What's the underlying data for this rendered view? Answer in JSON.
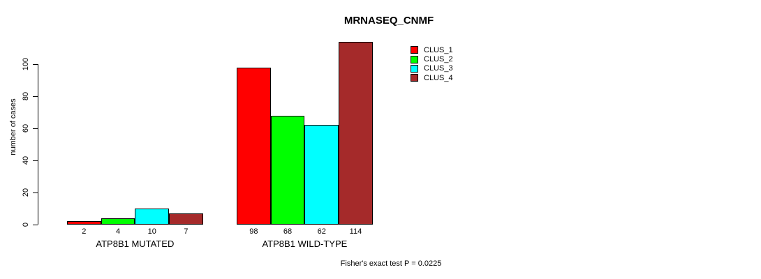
{
  "chart_data": {
    "type": "bar",
    "title": "MRNASEQ_CNMF",
    "ylabel": "number of cases",
    "xlabel": "",
    "yticks": [
      0,
      20,
      40,
      60,
      80,
      100
    ],
    "ylim": [
      0,
      114
    ],
    "grid": false,
    "legend_position": "top-right",
    "categories": [
      "ATP8B1 MUTATED",
      "ATP8B1 WILD-TYPE"
    ],
    "series": [
      {
        "name": "CLUS_1",
        "color": "#FF0000",
        "values": [
          2,
          98
        ]
      },
      {
        "name": "CLUS_2",
        "color": "#00FF00",
        "values": [
          4,
          68
        ]
      },
      {
        "name": "CLUS_3",
        "color": "#00FFFF",
        "values": [
          10,
          62
        ]
      },
      {
        "name": "CLUS_4",
        "color": "#A52A2A",
        "values": [
          7,
          114
        ]
      }
    ],
    "bar_value_labels": true,
    "annotation": "Fisher's exact test P = 0.0225"
  }
}
